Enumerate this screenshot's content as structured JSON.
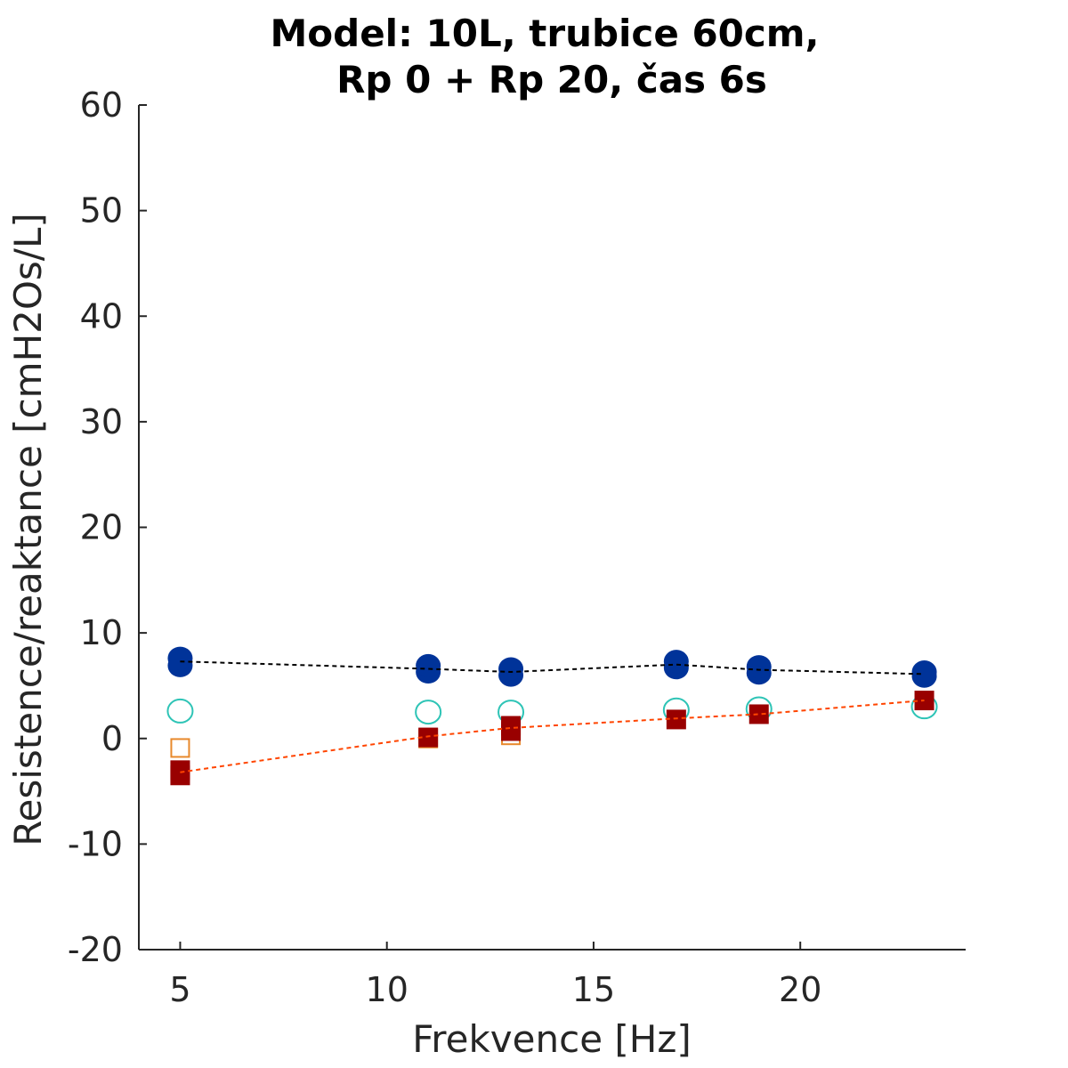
{
  "chart_data": {
    "type": "scatter",
    "title": [
      "Model: 10L, trubice 60cm,",
      "Rp 0 + Rp 20, čas 6s"
    ],
    "xlabel": "Frekvence [Hz]",
    "ylabel": "Resistence/reaktance [cmH2Os/L]",
    "xlim": [
      4,
      24
    ],
    "ylim": [
      -20,
      60
    ],
    "xticks": [
      5,
      10,
      15,
      20
    ],
    "yticks": [
      -20,
      -10,
      0,
      10,
      20,
      30,
      40,
      50,
      60
    ],
    "grid": false,
    "x": [
      5,
      11,
      13,
      17,
      19,
      23
    ],
    "series": [
      {
        "marker": "filled-circle",
        "color": "#003399",
        "points": [
          [
            5,
            6.9
          ],
          [
            5,
            7.6
          ],
          [
            11,
            6.3
          ],
          [
            11,
            6.9
          ],
          [
            13,
            6.0
          ],
          [
            13,
            6.6
          ],
          [
            17,
            6.7
          ],
          [
            17,
            7.3
          ],
          [
            19,
            6.2
          ],
          [
            19,
            6.8
          ],
          [
            23,
            5.9
          ],
          [
            23,
            6.3
          ]
        ]
      },
      {
        "marker": "open-circle",
        "color": "#2ec4b6",
        "points": [
          [
            5,
            2.6
          ],
          [
            11,
            2.5
          ],
          [
            13,
            2.5
          ],
          [
            17,
            2.7
          ],
          [
            19,
            2.8
          ],
          [
            23,
            3.0
          ]
        ]
      },
      {
        "marker": "filled-square",
        "color": "#990000",
        "points": [
          [
            5,
            -3.5
          ],
          [
            5,
            -3.0
          ],
          [
            11,
            0.1
          ],
          [
            13,
            0.7
          ],
          [
            13,
            1.2
          ],
          [
            17,
            1.8
          ],
          [
            19,
            2.3
          ],
          [
            23,
            3.6
          ]
        ]
      },
      {
        "marker": "open-square",
        "color": "#e8892c",
        "points": [
          [
            5,
            -0.9
          ],
          [
            11,
            0.0
          ],
          [
            13,
            0.3
          ]
        ]
      },
      {
        "marker": "none",
        "line": "dashed",
        "color": "#000000",
        "points": [
          [
            5,
            7.3
          ],
          [
            11,
            6.6
          ],
          [
            13,
            6.3
          ],
          [
            17,
            7.0
          ],
          [
            19,
            6.5
          ],
          [
            23,
            6.1
          ]
        ]
      },
      {
        "marker": "none",
        "line": "dashed",
        "color": "#ff4500",
        "points": [
          [
            5,
            -3.2
          ],
          [
            11,
            0.2
          ],
          [
            13,
            1.0
          ],
          [
            17,
            1.9
          ],
          [
            19,
            2.3
          ],
          [
            23,
            3.6
          ]
        ]
      }
    ]
  }
}
